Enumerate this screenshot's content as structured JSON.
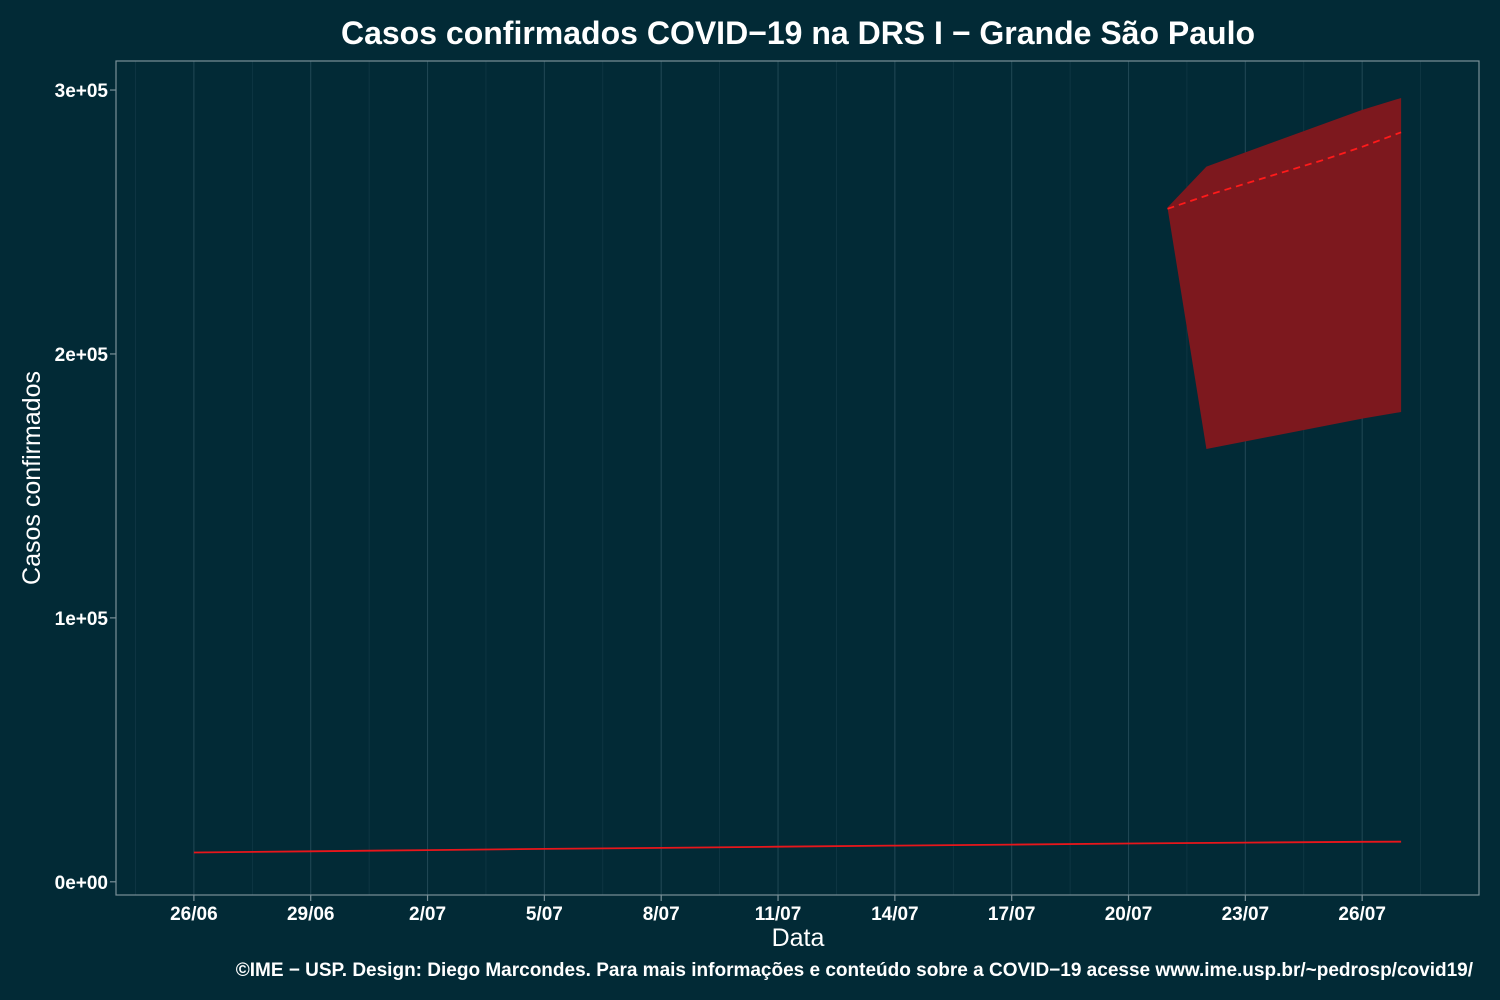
{
  "chart_data": {
    "type": "line",
    "title": "Casos confirmados COVID−19 na DRS I − Grande São Paulo",
    "xlabel": "Data",
    "ylabel": "Casos confirmados",
    "caption": "©IME − USP. Design: Diego Marcondes. Para mais informações e conteúdo sobre a COVID−19 acesse www.ime.usp.br/~pedrosp/covid19/",
    "x_tick_labels": [
      "26/06",
      "29/06",
      "2/07",
      "5/07",
      "8/07",
      "11/07",
      "14/07",
      "17/07",
      "20/07",
      "23/07",
      "26/07"
    ],
    "y_tick_labels": [
      "0e+00",
      "1e+05",
      "2e+05",
      "3e+05"
    ],
    "y_ticks": [
      0,
      100000,
      200000,
      300000
    ],
    "xlim": [
      "2020-06-24",
      "2020-07-29"
    ],
    "ylim": [
      -5000,
      311000
    ],
    "grid": true,
    "colors": {
      "background": "#022a36",
      "grid": "#1f4653",
      "axis": "#7a9098",
      "observed_line": "#e8161b",
      "forecast_line": "#ff1a1a",
      "forecast_band": "#7d181e"
    },
    "series": [
      {
        "style": "solid",
        "x": [
          "2020-06-26",
          "2020-06-29",
          "2020-07-02",
          "2020-07-05",
          "2020-07-08",
          "2020-07-11",
          "2020-07-14",
          "2020-07-17",
          "2020-07-20",
          "2020-07-23",
          "2020-07-26",
          "2020-07-27"
        ],
        "y": [
          11100,
          11550,
          12000,
          12450,
          12850,
          13300,
          13700,
          14100,
          14500,
          14850,
          15150,
          15200
        ]
      },
      {
        "style": "dashed",
        "x": [
          "2020-07-21",
          "2020-07-22",
          "2020-07-23",
          "2020-07-24",
          "2020-07-25",
          "2020-07-26",
          "2020-07-27"
        ],
        "y": [
          255000,
          260000,
          264500,
          269000,
          273500,
          278500,
          284000
        ]
      }
    ],
    "band": {
      "x": [
        "2020-07-21",
        "2020-07-22",
        "2020-07-26",
        "2020-07-27"
      ],
      "upper": [
        255500,
        271000,
        292500,
        297000
      ],
      "lower": [
        255500,
        164000,
        175500,
        178000
      ]
    }
  }
}
